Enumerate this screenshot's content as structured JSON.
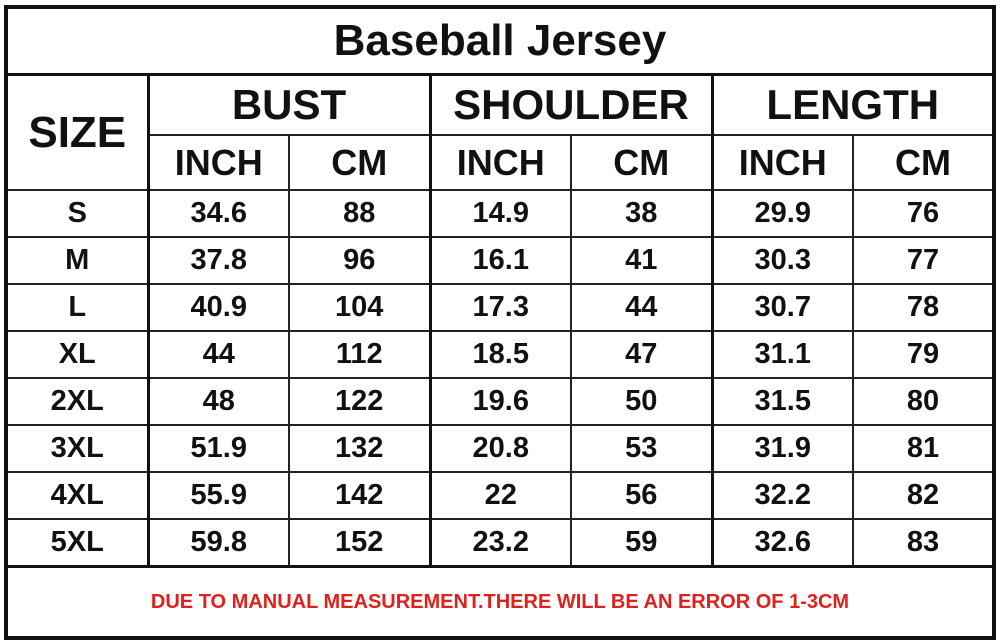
{
  "title": "Baseball Jersey",
  "headers": {
    "size": "SIZE",
    "groups": [
      "BUST",
      "SHOULDER",
      "LENGTH"
    ],
    "units": [
      "INCH",
      "CM"
    ]
  },
  "rows": [
    [
      "S",
      "34.6",
      "88",
      "14.9",
      "38",
      "29.9",
      "76"
    ],
    [
      "M",
      "37.8",
      "96",
      "16.1",
      "41",
      "30.3",
      "77"
    ],
    [
      "L",
      "40.9",
      "104",
      "17.3",
      "44",
      "30.7",
      "78"
    ],
    [
      "XL",
      "44",
      "112",
      "18.5",
      "47",
      "31.1",
      "79"
    ],
    [
      "2XL",
      "48",
      "122",
      "19.6",
      "50",
      "31.5",
      "80"
    ],
    [
      "3XL",
      "51.9",
      "132",
      "20.8",
      "53",
      "31.9",
      "81"
    ],
    [
      "4XL",
      "55.9",
      "142",
      "22",
      "56",
      "32.2",
      "82"
    ],
    [
      "5XL",
      "59.8",
      "152",
      "23.2",
      "59",
      "32.6",
      "83"
    ]
  ],
  "note": "DUE TO MANUAL MEASUREMENT.THERE WILL BE AN ERROR OF 1-3CM",
  "colors": {
    "note": "#e0201c",
    "border": "#111111"
  }
}
